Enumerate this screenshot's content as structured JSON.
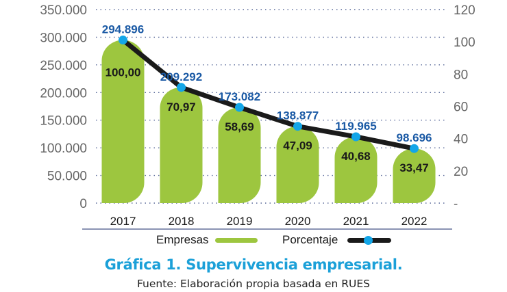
{
  "chart_data": {
    "type": "bar",
    "categories": [
      "2017",
      "2018",
      "2019",
      "2020",
      "2021",
      "2022"
    ],
    "series": [
      {
        "name": "Empresas",
        "type": "bar",
        "axis": "left",
        "values": [
          294896,
          209292,
          173082,
          138877,
          119965,
          98696
        ],
        "labels": [
          "294.896",
          "209.292",
          "173.082",
          "138.877",
          "119.965",
          "98.696"
        ],
        "color": "#9dc63f"
      },
      {
        "name": "Porcentaje",
        "type": "line",
        "axis": "right",
        "values": [
          100.0,
          70.97,
          58.69,
          47.09,
          40.68,
          33.47
        ],
        "labels": [
          "100,00",
          "70,97",
          "58,69",
          "47,09",
          "40,68",
          "33,47"
        ],
        "color": "#1a1a1a",
        "marker_color": "#13a6e8"
      }
    ],
    "y_left": {
      "range": [
        0,
        350000
      ],
      "ticks": [
        0,
        50000,
        100000,
        150000,
        200000,
        250000,
        300000,
        350000
      ],
      "tick_labels": [
        "0",
        "50.000",
        "100.000",
        "150.000",
        "200.000",
        "250.000",
        "300.000",
        "350.000"
      ]
    },
    "y_right": {
      "range": [
        0,
        120
      ],
      "ticks": [
        0,
        20,
        40,
        60,
        80,
        100,
        120
      ],
      "tick_labels": [
        "-",
        "20",
        "40",
        "60",
        "80",
        "100",
        "120"
      ]
    },
    "grid": true,
    "legend_placement": "bottom",
    "value_label_color": "#1b5aa5"
  },
  "legend": {
    "empresas": "Empresas",
    "porcentaje": "Porcentaje"
  },
  "caption": {
    "title": "Gráfica 1. Supervivencia empresarial.",
    "source": "Fuente: Elaboración propia basada en RUES"
  }
}
